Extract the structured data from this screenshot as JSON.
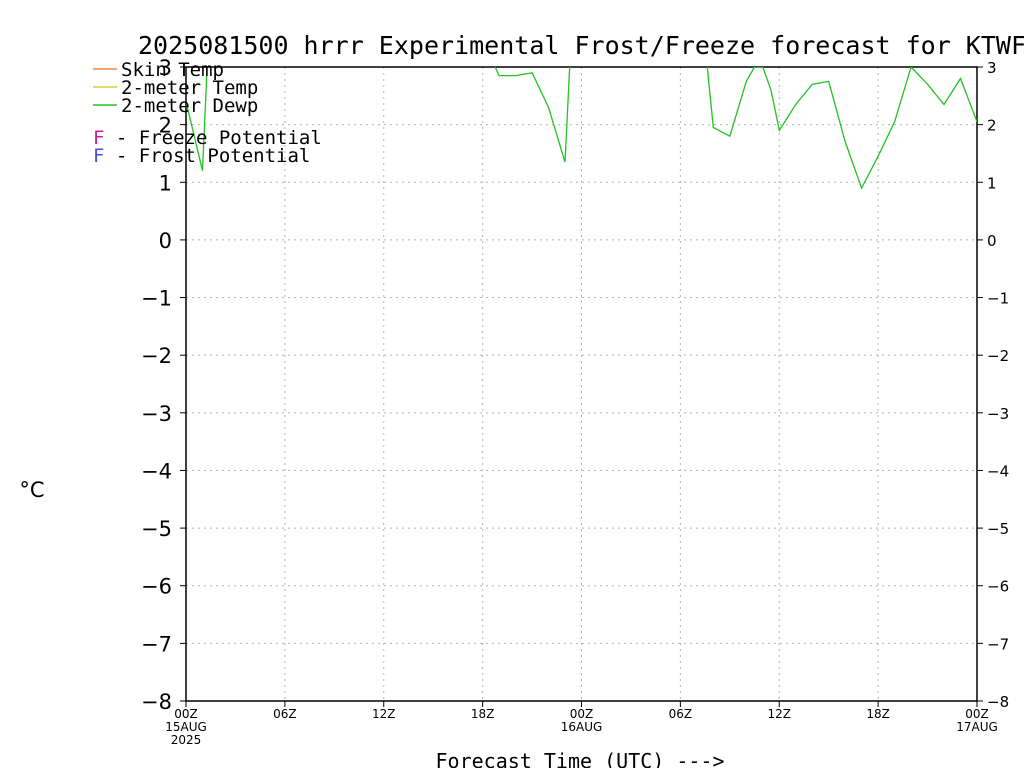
{
  "chart_data": {
    "type": "line",
    "title": "2025081500 hrrr Experimental Frost/Freeze forecast for KTWF",
    "xlabel": "Forecast Time (UTC) --->",
    "ylabel": "°C",
    "ylim": [
      -8,
      3
    ],
    "xlim": [
      0,
      48
    ],
    "grid": true,
    "y_ticks": [
      "3",
      "2",
      "1",
      "0",
      "−1",
      "−2",
      "−3",
      "−4",
      "−5",
      "−6",
      "−7",
      "−8"
    ],
    "y_tick_values": [
      3,
      2,
      1,
      0,
      -1,
      -2,
      -3,
      -4,
      -5,
      -6,
      -7,
      -8
    ],
    "x_ticks": [
      {
        "x": 0,
        "label": "00Z",
        "sub": [
          "15AUG",
          "2025"
        ]
      },
      {
        "x": 6,
        "label": "06Z",
        "sub": []
      },
      {
        "x": 12,
        "label": "12Z",
        "sub": []
      },
      {
        "x": 18,
        "label": "18Z",
        "sub": []
      },
      {
        "x": 24,
        "label": "00Z",
        "sub": [
          "16AUG"
        ]
      },
      {
        "x": 30,
        "label": "06Z",
        "sub": []
      },
      {
        "x": 36,
        "label": "12Z",
        "sub": []
      },
      {
        "x": 42,
        "label": "18Z",
        "sub": []
      },
      {
        "x": 48,
        "label": "00Z",
        "sub": [
          "17AUG"
        ]
      }
    ],
    "legend": {
      "position": "top-left",
      "series_entries": [
        {
          "name": "Skin Temp",
          "color": "#f08c3c"
        },
        {
          "name": "2-meter Temp",
          "color": "#e6c83c"
        },
        {
          "name": "2-meter Dewp",
          "color": "#22c322"
        }
      ],
      "potential_entries": [
        {
          "marker": "F",
          "text": "- Freeze Potential",
          "color": "#c81e96"
        },
        {
          "marker": "F",
          "text": "- Frost Potential",
          "color": "#4650dc"
        }
      ]
    },
    "series": [
      {
        "name": "Skin Temp",
        "color": "#f08c3c",
        "values": []
      },
      {
        "name": "2-meter Temp",
        "color": "#e6c83c",
        "values": []
      },
      {
        "name": "2-meter Dewp",
        "color": "#22c322",
        "points": [
          [
            0,
            2.4
          ],
          [
            1,
            1.2
          ],
          [
            1.3,
            3.1
          ],
          [
            18.6,
            3.1
          ],
          [
            19,
            2.85
          ],
          [
            20,
            2.85
          ],
          [
            21,
            2.9
          ],
          [
            22,
            2.3
          ],
          [
            23,
            1.35
          ],
          [
            23.3,
            3.1
          ],
          [
            31.6,
            3.1
          ],
          [
            32,
            1.95
          ],
          [
            33,
            1.8
          ],
          [
            34,
            2.75
          ],
          [
            34.5,
            3.0
          ],
          [
            35,
            3.0
          ],
          [
            35.5,
            2.6
          ],
          [
            36,
            1.9
          ],
          [
            37,
            2.35
          ],
          [
            38,
            2.7
          ],
          [
            39,
            2.75
          ],
          [
            40,
            1.7
          ],
          [
            41,
            0.9
          ],
          [
            42,
            1.45
          ],
          [
            43,
            2.05
          ],
          [
            44,
            3.0
          ],
          [
            45,
            2.7
          ],
          [
            46,
            2.35
          ],
          [
            47,
            2.8
          ],
          [
            48,
            2.05
          ]
        ]
      }
    ]
  }
}
